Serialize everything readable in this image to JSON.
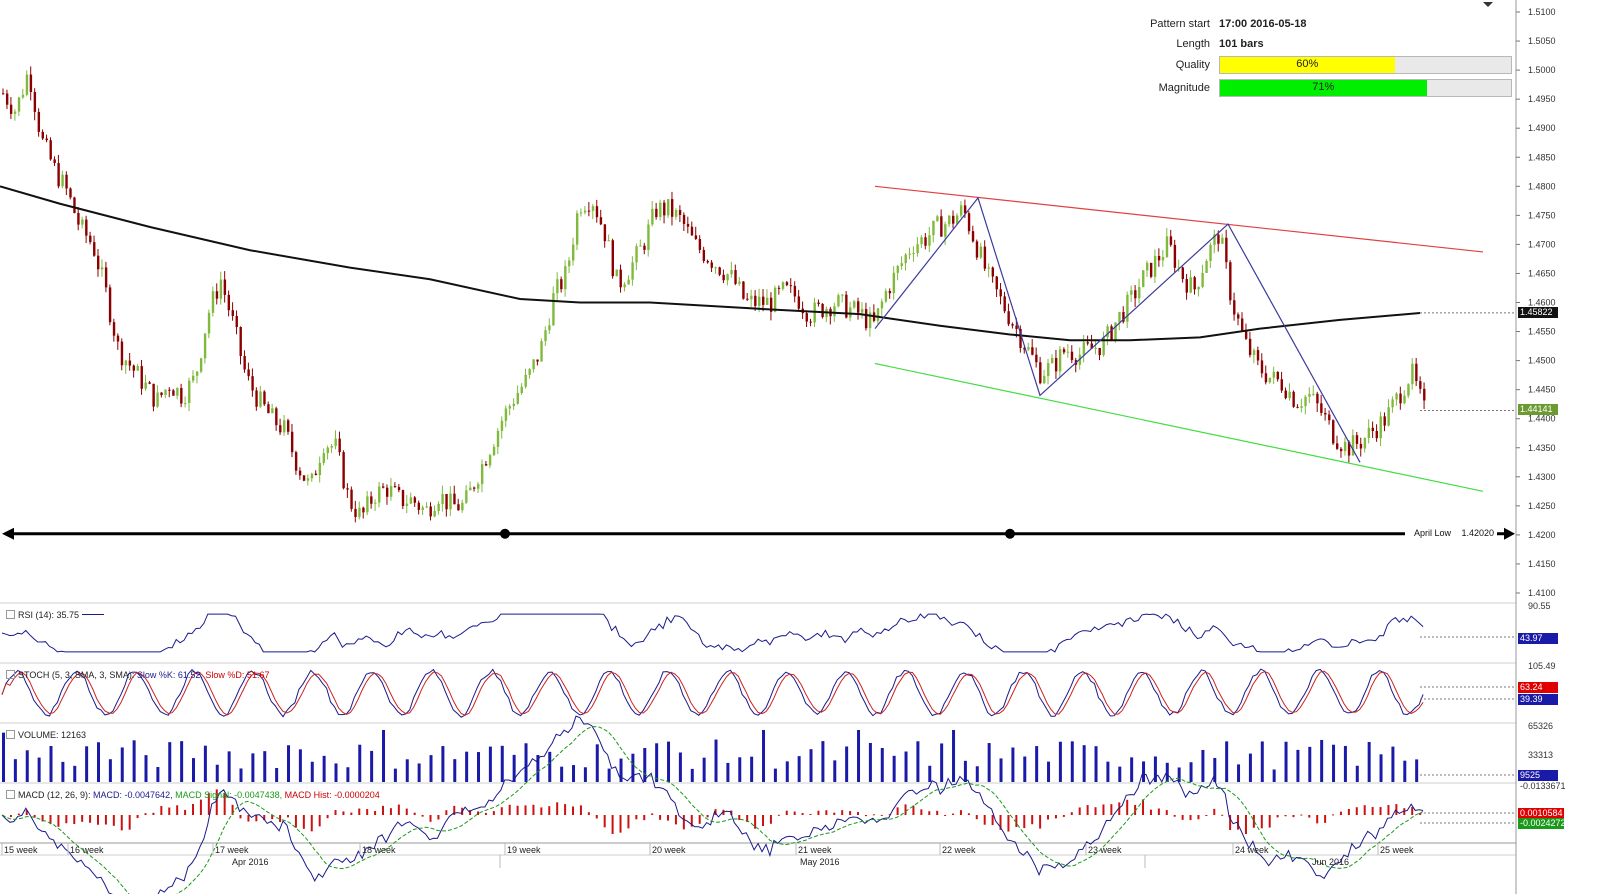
{
  "pattern_info": {
    "pattern_start_label": "Pattern start",
    "pattern_start_value": "17:00 2016-05-18",
    "length_label": "Length",
    "length_value": "101 bars",
    "quality_label": "Quality",
    "quality_value": "60%",
    "quality_fraction": 0.6,
    "magnitude_label": "Magnitude",
    "magnitude_value": "71%",
    "magnitude_fraction": 0.71,
    "quality_color": "#ffff00",
    "magnitude_color": "#00ee00"
  },
  "annotations": {
    "april_low_label": "April Low",
    "april_low_value": "1.42020",
    "current_price_tag": "1.44141",
    "ma_price_tag": "1.45822"
  },
  "indicators": {
    "rsi_title": "RSI (14): 35.75",
    "rsi_tag": "43.97",
    "rsi_scale_top": "90.55",
    "stoch_title_prefix": "STOCH (5, 3, SMA, 3, SMA): ",
    "stoch_k": "Slow %K: 61.52,",
    "stoch_d": "Slow %D: 51.67",
    "stoch_tag_k": "63.24",
    "stoch_tag_d": "39.39",
    "stoch_scale_top": "105.49",
    "volume_title": "VOLUME: 12163",
    "volume_tag": "9525",
    "volume_scale_top": "65326",
    "volume_scale_mid": "33313",
    "macd_title_prefix": "MACD (12, 26, 9): ",
    "macd_main": "MACD: -0.0047642,",
    "macd_signal": "MACD Signal: -0.0047438,",
    "macd_hist": "MACD Hist: -0.0000204",
    "macd_scale_top": "-0.0133671",
    "macd_tag_top": "0.0010584",
    "macd_tag_bottom": "-0.0024272"
  },
  "colors": {
    "bull": "#7fba3c",
    "bear": "#8b0000",
    "ma": "#111111",
    "pattern_line": "#3b3b9e",
    "upper_channel": "#e04040",
    "lower_channel": "#44dd44",
    "tag_green": "#6a9a30",
    "tag_black": "#111111",
    "tag_blue": "#1a1aa8",
    "tag_red": "#e00000"
  },
  "chart_data": {
    "type": "candlestick",
    "ylim": [
      1.41,
      1.51
    ],
    "y_ticks": [
      "1.5100",
      "1.5050",
      "1.5000",
      "1.4950",
      "1.4900",
      "1.4850",
      "1.4800",
      "1.4750",
      "1.4700",
      "1.4650",
      "1.4600",
      "1.4550",
      "1.4500",
      "1.4450",
      "1.4400",
      "1.4350",
      "1.4300",
      "1.4250",
      "1.4200",
      "1.4150",
      "1.4100"
    ],
    "week_labels": [
      "15 week",
      "16 week",
      "17 week",
      "18 week",
      "19 week",
      "20 week",
      "21 week",
      "22 week",
      "23 week",
      "24 week",
      "25 week"
    ],
    "month_labels": [
      "Apr 2016",
      "May 2016",
      "Jun 2016"
    ],
    "close_path": [
      1.496,
      1.493,
      1.5,
      1.488,
      1.483,
      1.479,
      1.473,
      1.47,
      1.462,
      1.452,
      1.449,
      1.446,
      1.443,
      1.446,
      1.444,
      1.447,
      1.458,
      1.464,
      1.456,
      1.447,
      1.443,
      1.44,
      1.438,
      1.432,
      1.428,
      1.436,
      1.435,
      1.426,
      1.423,
      1.427,
      1.428,
      1.426,
      1.426,
      1.424,
      1.427,
      1.425,
      1.425,
      1.43,
      1.435,
      1.44,
      1.444,
      1.447,
      1.452,
      1.461,
      1.465,
      1.477,
      1.478,
      1.472,
      1.463,
      1.466,
      1.47,
      1.476,
      1.476,
      1.474,
      1.47,
      1.468,
      1.466,
      1.464,
      1.46,
      1.46,
      1.46,
      1.462,
      1.461,
      1.458,
      1.459,
      1.46,
      1.459,
      1.458,
      1.456,
      1.462,
      1.466,
      1.47,
      1.471,
      1.473,
      1.474,
      1.476,
      1.47,
      1.464,
      1.46,
      1.456,
      1.452,
      1.448,
      1.449,
      1.452,
      1.451,
      1.452,
      1.453,
      1.457,
      1.46,
      1.464,
      1.467,
      1.47,
      1.465,
      1.462,
      1.468,
      1.472,
      1.46,
      1.453,
      1.449,
      1.447,
      1.446,
      1.443,
      1.444,
      1.441,
      1.437,
      1.435,
      1.436,
      1.438,
      1.44,
      1.444,
      1.448,
      1.4414
    ],
    "moving_average": [
      [
        0,
        1.48
      ],
      [
        60,
        1.477
      ],
      [
        150,
        1.473
      ],
      [
        250,
        1.469
      ],
      [
        350,
        1.466
      ],
      [
        430,
        1.464
      ],
      [
        520,
        1.4606
      ],
      [
        580,
        1.46
      ],
      [
        650,
        1.46
      ],
      [
        750,
        1.459
      ],
      [
        860,
        1.458
      ],
      [
        940,
        1.456
      ],
      [
        1010,
        1.4545
      ],
      [
        1070,
        1.4535
      ],
      [
        1130,
        1.4535
      ],
      [
        1200,
        1.454
      ],
      [
        1260,
        1.4555
      ],
      [
        1340,
        1.457
      ],
      [
        1420,
        1.4582
      ]
    ],
    "pattern_zigzag": [
      [
        875,
        1.4555
      ],
      [
        978,
        1.478
      ],
      [
        1040,
        1.444
      ],
      [
        1228,
        1.4735
      ],
      [
        1360,
        1.4325
      ]
    ],
    "upper_channel": [
      [
        875,
        1.48
      ],
      [
        1483,
        1.4687
      ]
    ],
    "lower_channel": [
      [
        875,
        1.4495
      ],
      [
        1483,
        1.4275
      ]
    ],
    "support_line": 1.4202,
    "support_markers_x": [
      505,
      1010
    ],
    "current_price": 1.44141,
    "ma_current": 1.45822
  }
}
